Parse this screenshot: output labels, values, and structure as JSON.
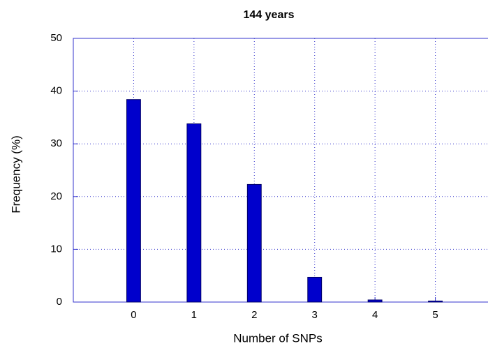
{
  "chart_data": {
    "type": "bar",
    "title": "144 years",
    "x_label": "Number of SNPs",
    "y_label": "Frequency (%)",
    "x": [
      0,
      1,
      2,
      3,
      4,
      5
    ],
    "values": [
      38.4,
      33.8,
      22.3,
      4.7,
      0.4,
      0.2
    ],
    "color": "#0000cc",
    "xlim": [
      -1,
      6
    ],
    "xticks": [
      0,
      1,
      2,
      3,
      4,
      5
    ],
    "ylim": [
      0,
      50
    ],
    "yticks": [
      0,
      10,
      20,
      30,
      40,
      50
    ],
    "grid": true
  }
}
